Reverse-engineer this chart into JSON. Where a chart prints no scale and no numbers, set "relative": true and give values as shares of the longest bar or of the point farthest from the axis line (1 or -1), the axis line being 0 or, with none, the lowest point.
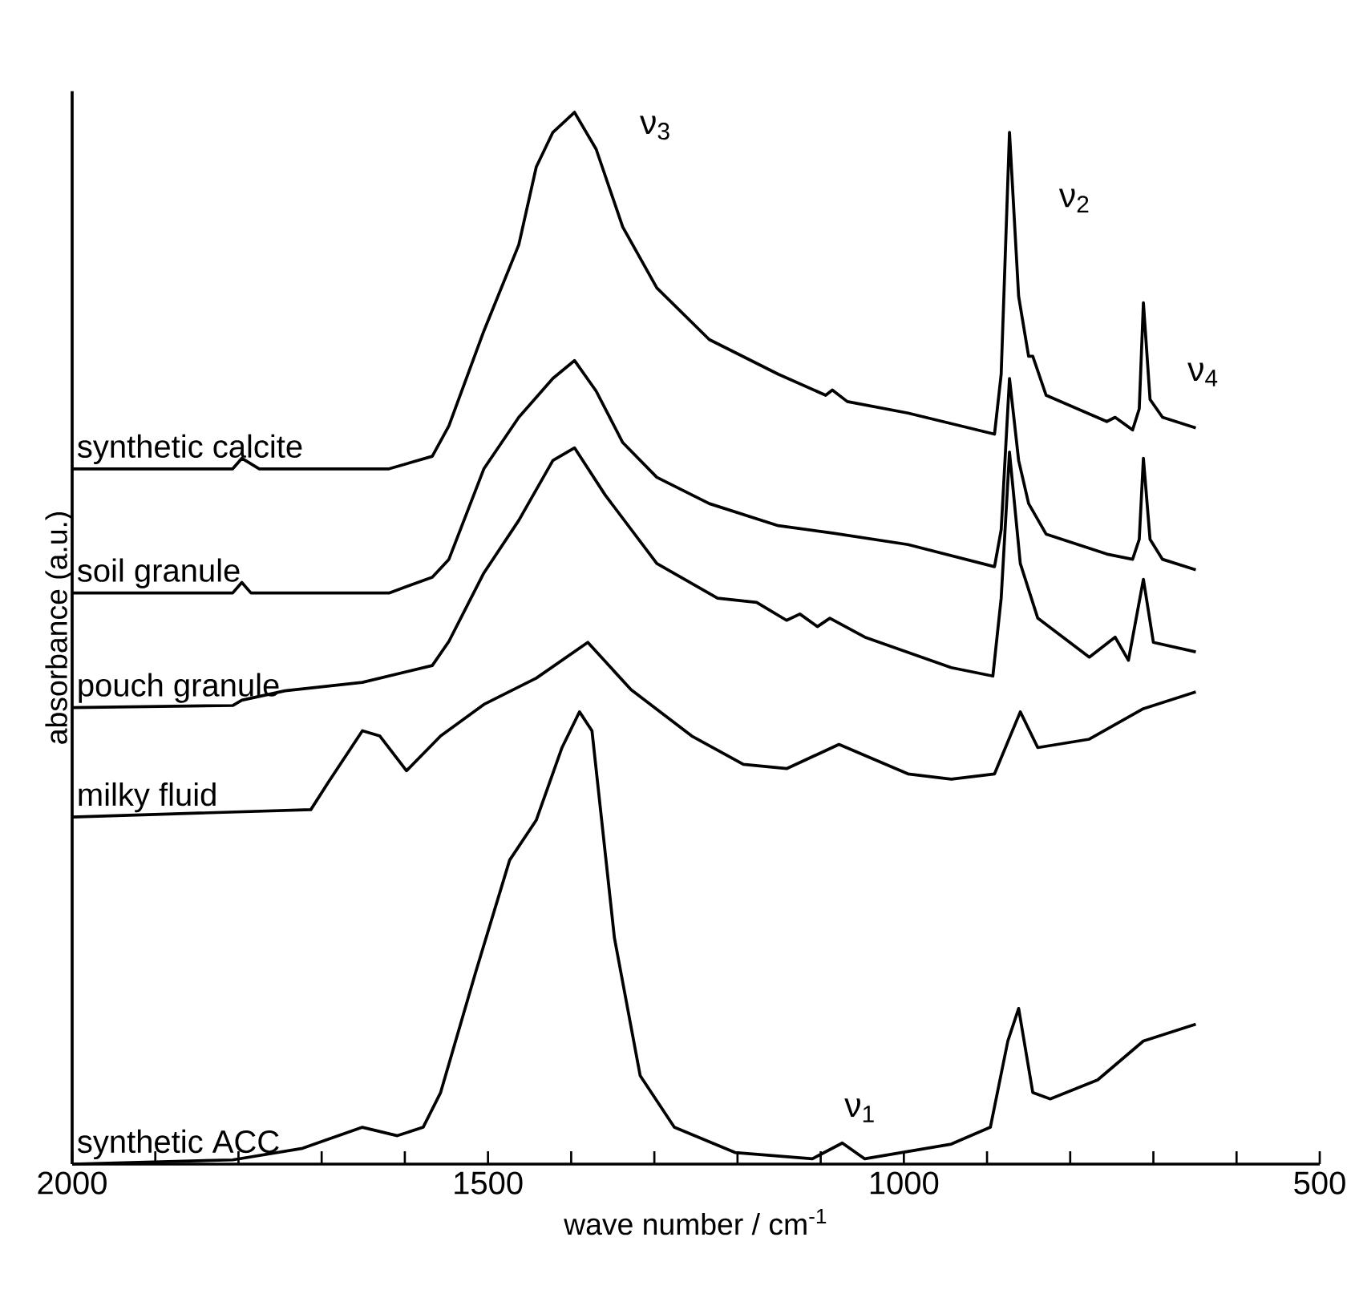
{
  "chart_data": {
    "type": "line",
    "relative": true,
    "xlabel": "wave number / cm$^{-1}$",
    "ylabel": "absorbance (a.u.)",
    "xlim": [
      2000,
      500
    ],
    "xticks": [
      2000,
      {
        "value": 1900,
        "label": null
      },
      {
        "value": 1800,
        "label": null
      },
      {
        "value": 1700,
        "label": null
      },
      {
        "value": 1600,
        "label": null
      },
      1500,
      {
        "value": 1400,
        "label": null
      },
      {
        "value": 1300,
        "label": null
      },
      {
        "value": 1200,
        "label": null
      },
      {
        "value": 1100,
        "label": null
      },
      1000,
      {
        "value": 900,
        "label": null
      },
      {
        "value": 800,
        "label": null
      },
      {
        "value": 700,
        "label": null
      },
      {
        "value": 600,
        "label": null
      },
      500
    ],
    "legend": false,
    "grid": false,
    "marker": "none",
    "line_style": "solid",
    "series": [
      {
        "name": "synthetic calcite",
        "color": "#000000",
        "x": [
          2000,
          1807,
          1796,
          1775,
          1619,
          1567,
          1547,
          1505,
          1463,
          1442,
          1422,
          1396,
          1370,
          1338,
          1297,
          1234,
          1151,
          1094,
          1086,
          1068,
          995,
          891,
          883,
          873,
          862,
          850,
          845,
          829,
          756,
          746,
          725,
          717,
          712,
          704,
          689,
          649
        ],
        "values": [
          0.661,
          0.661,
          0.671,
          0.661,
          0.661,
          0.673,
          0.702,
          0.792,
          0.874,
          0.948,
          0.981,
          1.0,
          0.965,
          0.891,
          0.833,
          0.784,
          0.751,
          0.731,
          0.736,
          0.725,
          0.714,
          0.694,
          0.751,
          0.981,
          0.825,
          0.768,
          0.768,
          0.731,
          0.706,
          0.71,
          0.698,
          0.718,
          0.819,
          0.727,
          0.71,
          0.7
        ]
      },
      {
        "name": "soil granule",
        "color": "#000000",
        "x": [
          2000,
          1807,
          1796,
          1785,
          1619,
          1567,
          1547,
          1505,
          1463,
          1422,
          1396,
          1370,
          1338,
          1297,
          1234,
          1151,
          1086,
          995,
          891,
          883,
          873,
          862,
          850,
          829,
          756,
          725,
          717,
          712,
          704,
          689,
          649
        ],
        "values": [
          0.543,
          0.543,
          0.553,
          0.543,
          0.543,
          0.558,
          0.575,
          0.661,
          0.71,
          0.747,
          0.764,
          0.735,
          0.686,
          0.653,
          0.628,
          0.607,
          0.6,
          0.589,
          0.568,
          0.603,
          0.747,
          0.669,
          0.628,
          0.599,
          0.58,
          0.575,
          0.594,
          0.671,
          0.594,
          0.575,
          0.565
        ]
      },
      {
        "name": "pouch granule",
        "color": "#000000",
        "x": [
          2000,
          1807,
          1796,
          1744,
          1651,
          1567,
          1547,
          1505,
          1463,
          1422,
          1396,
          1359,
          1297,
          1224,
          1177,
          1141,
          1125,
          1104,
          1089,
          1047,
          943,
          893,
          883,
          873,
          860,
          839,
          777,
          746,
          730,
          712,
          700,
          649
        ],
        "values": [
          0.434,
          0.436,
          0.441,
          0.45,
          0.458,
          0.474,
          0.497,
          0.562,
          0.612,
          0.669,
          0.681,
          0.636,
          0.571,
          0.538,
          0.534,
          0.517,
          0.523,
          0.511,
          0.519,
          0.501,
          0.472,
          0.464,
          0.538,
          0.677,
          0.571,
          0.519,
          0.482,
          0.501,
          0.479,
          0.556,
          0.496,
          0.487
        ]
      },
      {
        "name": "milky fluid",
        "color": "#000000",
        "x": [
          2000,
          1713,
          1692,
          1651,
          1630,
          1598,
          1557,
          1505,
          1442,
          1380,
          1328,
          1255,
          1193,
          1141,
          1078,
          995,
          943,
          891,
          860,
          839,
          777,
          712,
          649
        ],
        "values": [
          0.33,
          0.337,
          0.363,
          0.412,
          0.407,
          0.374,
          0.407,
          0.437,
          0.462,
          0.496,
          0.451,
          0.407,
          0.38,
          0.376,
          0.399,
          0.371,
          0.366,
          0.371,
          0.43,
          0.396,
          0.404,
          0.433,
          0.449
        ]
      },
      {
        "name": "synthetic ACC",
        "color": "#000000",
        "x": [
          2000,
          1807,
          1723,
          1651,
          1609,
          1578,
          1557,
          1515,
          1474,
          1442,
          1411,
          1390,
          1375,
          1348,
          1317,
          1276,
          1203,
          1110,
          1074,
          1047,
          943,
          896,
          875,
          862,
          845,
          824,
          767,
          712,
          649
        ],
        "values": [
          0.0,
          0.004,
          0.015,
          0.035,
          0.027,
          0.035,
          0.068,
          0.182,
          0.289,
          0.327,
          0.396,
          0.43,
          0.412,
          0.215,
          0.084,
          0.035,
          0.011,
          0.005,
          0.02,
          0.005,
          0.019,
          0.035,
          0.117,
          0.148,
          0.068,
          0.062,
          0.08,
          0.117,
          0.133
        ]
      }
    ],
    "annotations": [
      "ν$_{3}$",
      "ν$_{2}$",
      "ν$_{4}$",
      "ν$_{1}$"
    ]
  }
}
